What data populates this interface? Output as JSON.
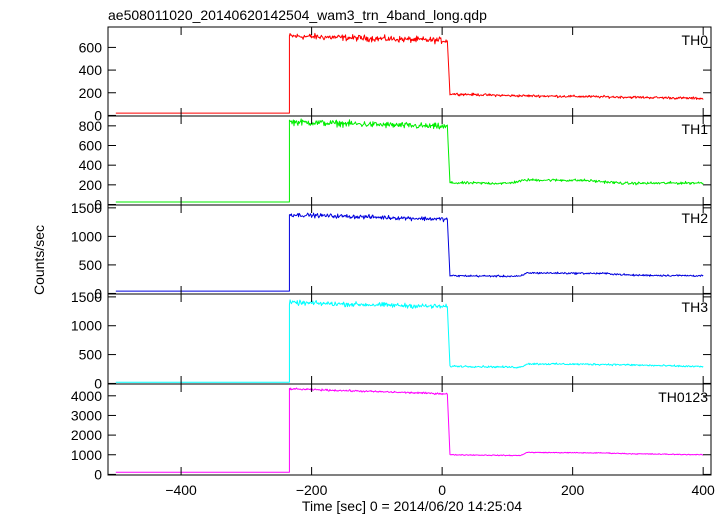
{
  "title": "ae508011020_20140620142504_wam3_trn_4band_long.qdp",
  "xlabel": "Time [sec] 0 = 2014/06/20 14:25:04",
  "ylabel": "Counts/sec",
  "chart_data": {
    "type": "line",
    "title": "ae508011020_20140620142504_wam3_trn_4band_long.qdp",
    "xlabel": "Time [sec] 0 = 2014/06/20 14:25:04",
    "ylabel": "Counts/sec",
    "xlim": [
      -512,
      412
    ],
    "xticks": [
      -400,
      -200,
      0,
      200,
      400
    ],
    "xtick_labels": [
      "−400",
      "−200",
      "0",
      "200",
      "400"
    ],
    "panels": [
      {
        "name": "TH0",
        "color": "#ff0000",
        "ylim": [
          -5,
          780
        ],
        "yticks": [
          0,
          200,
          400,
          600
        ],
        "ytick_labels": [
          "0",
          "200",
          "400",
          "600"
        ],
        "profile": {
          "pre_level": 20,
          "rise_time": -234,
          "peak_start": 700,
          "peak_end": 660,
          "drop_time": 8,
          "post_points": [
            [
              8,
              660
            ],
            [
              12,
              190
            ],
            [
              100,
              175
            ],
            [
              200,
              168
            ],
            [
              300,
              160
            ],
            [
              400,
              150
            ]
          ],
          "noise_high": 30,
          "noise_low": 12
        }
      },
      {
        "name": "TH1",
        "color": "#00ee00",
        "ylim": [
          -5,
          900
        ],
        "yticks": [
          0,
          200,
          400,
          600,
          800
        ],
        "ytick_labels": [
          "0",
          "200",
          "400",
          "600",
          "800"
        ],
        "profile": {
          "pre_level": 25,
          "rise_time": -234,
          "peak_start": 840,
          "peak_end": 790,
          "drop_time": 8,
          "post_points": [
            [
              8,
              790
            ],
            [
              12,
              220
            ],
            [
              100,
              215
            ],
            [
              130,
              250
            ],
            [
              220,
              245
            ],
            [
              280,
              215
            ],
            [
              400,
              220
            ]
          ],
          "noise_high": 35,
          "noise_low": 15
        }
      },
      {
        "name": "TH2",
        "color": "#0000dd",
        "ylim": [
          -10,
          1550
        ],
        "yticks": [
          0,
          500,
          1000,
          1500
        ],
        "ytick_labels": [
          "0",
          "500",
          "1000",
          "1500"
        ],
        "profile": {
          "pre_level": 40,
          "rise_time": -234,
          "peak_start": 1380,
          "peak_end": 1300,
          "drop_time": 8,
          "post_points": [
            [
              8,
              1300
            ],
            [
              12,
              310
            ],
            [
              120,
              300
            ],
            [
              130,
              360
            ],
            [
              250,
              350
            ],
            [
              290,
              320
            ],
            [
              400,
              310
            ]
          ],
          "noise_high": 40,
          "noise_low": 18
        }
      },
      {
        "name": "TH3",
        "color": "#00ffff",
        "ylim": [
          -10,
          1550
        ],
        "yticks": [
          0,
          500,
          1000,
          1500
        ],
        "ytick_labels": [
          "0",
          "500",
          "1000",
          "1500"
        ],
        "profile": {
          "pre_level": 20,
          "rise_time": -234,
          "peak_start": 1400,
          "peak_end": 1330,
          "drop_time": 8,
          "post_points": [
            [
              8,
              1330
            ],
            [
              12,
              300
            ],
            [
              120,
              280
            ],
            [
              130,
              340
            ],
            [
              250,
              330
            ],
            [
              290,
              320
            ],
            [
              400,
              290
            ]
          ],
          "noise_high": 45,
          "noise_low": 18
        }
      },
      {
        "name": "TH0123",
        "color": "#ff00ff",
        "ylim": [
          -30,
          4600
        ],
        "yticks": [
          0,
          1000,
          2000,
          3000,
          4000
        ],
        "ytick_labels": [
          "0",
          "1000",
          "2000",
          "3000",
          "4000"
        ],
        "profile": {
          "pre_level": 110,
          "rise_time": -234,
          "peak_start": 4350,
          "peak_end": 4100,
          "drop_time": 8,
          "post_points": [
            [
              8,
              4100
            ],
            [
              12,
              1000
            ],
            [
              120,
              960
            ],
            [
              130,
              1120
            ],
            [
              250,
              1090
            ],
            [
              290,
              1050
            ],
            [
              400,
              1000
            ]
          ],
          "noise_high": 50,
          "noise_low": 25
        }
      }
    ]
  }
}
